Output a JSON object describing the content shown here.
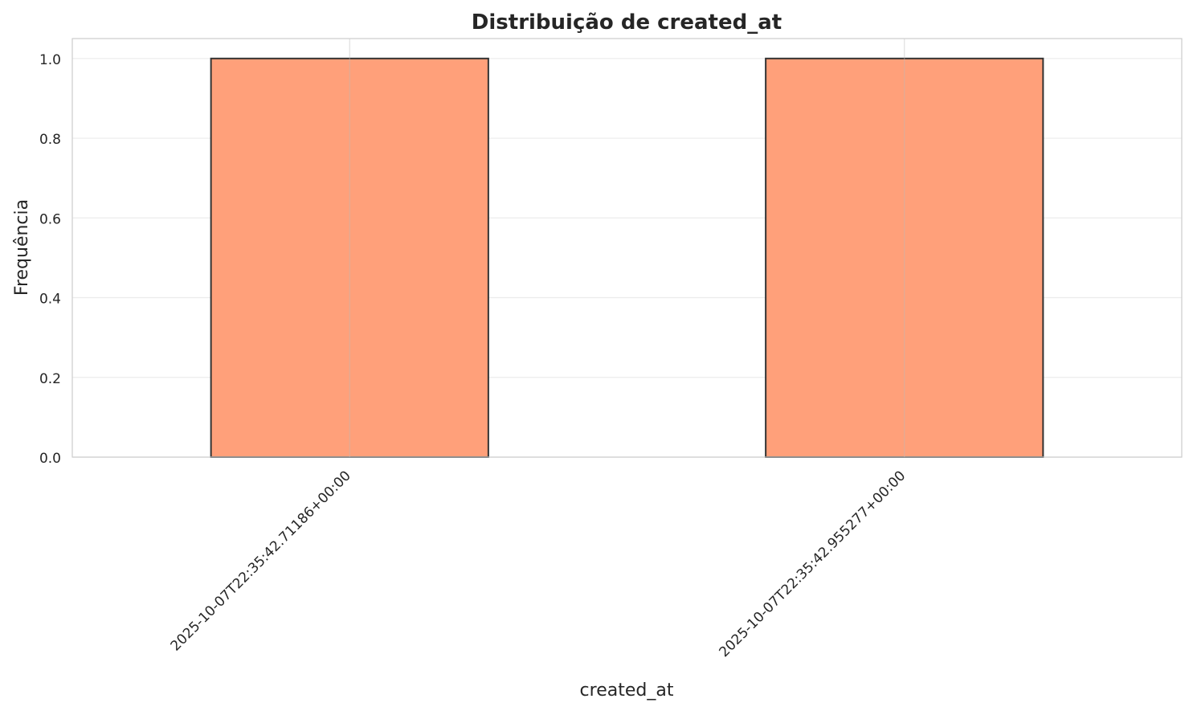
{
  "chart_data": {
    "type": "bar",
    "title": "Distribuição de created_at",
    "xlabel": "created_at",
    "ylabel": "Frequência",
    "categories": [
      "2025-10-07T22:35:42.71186+00:00",
      "2025-10-07T22:35:42.955277+00:00"
    ],
    "values": [
      1,
      1
    ],
    "ylim": [
      0,
      1.05
    ],
    "yticks": [
      "0.0",
      "0.2",
      "0.4",
      "0.6",
      "0.8",
      "1.0"
    ],
    "grid": true,
    "bar_color": "#ffa07a",
    "bar_edge_color": "#333333"
  }
}
